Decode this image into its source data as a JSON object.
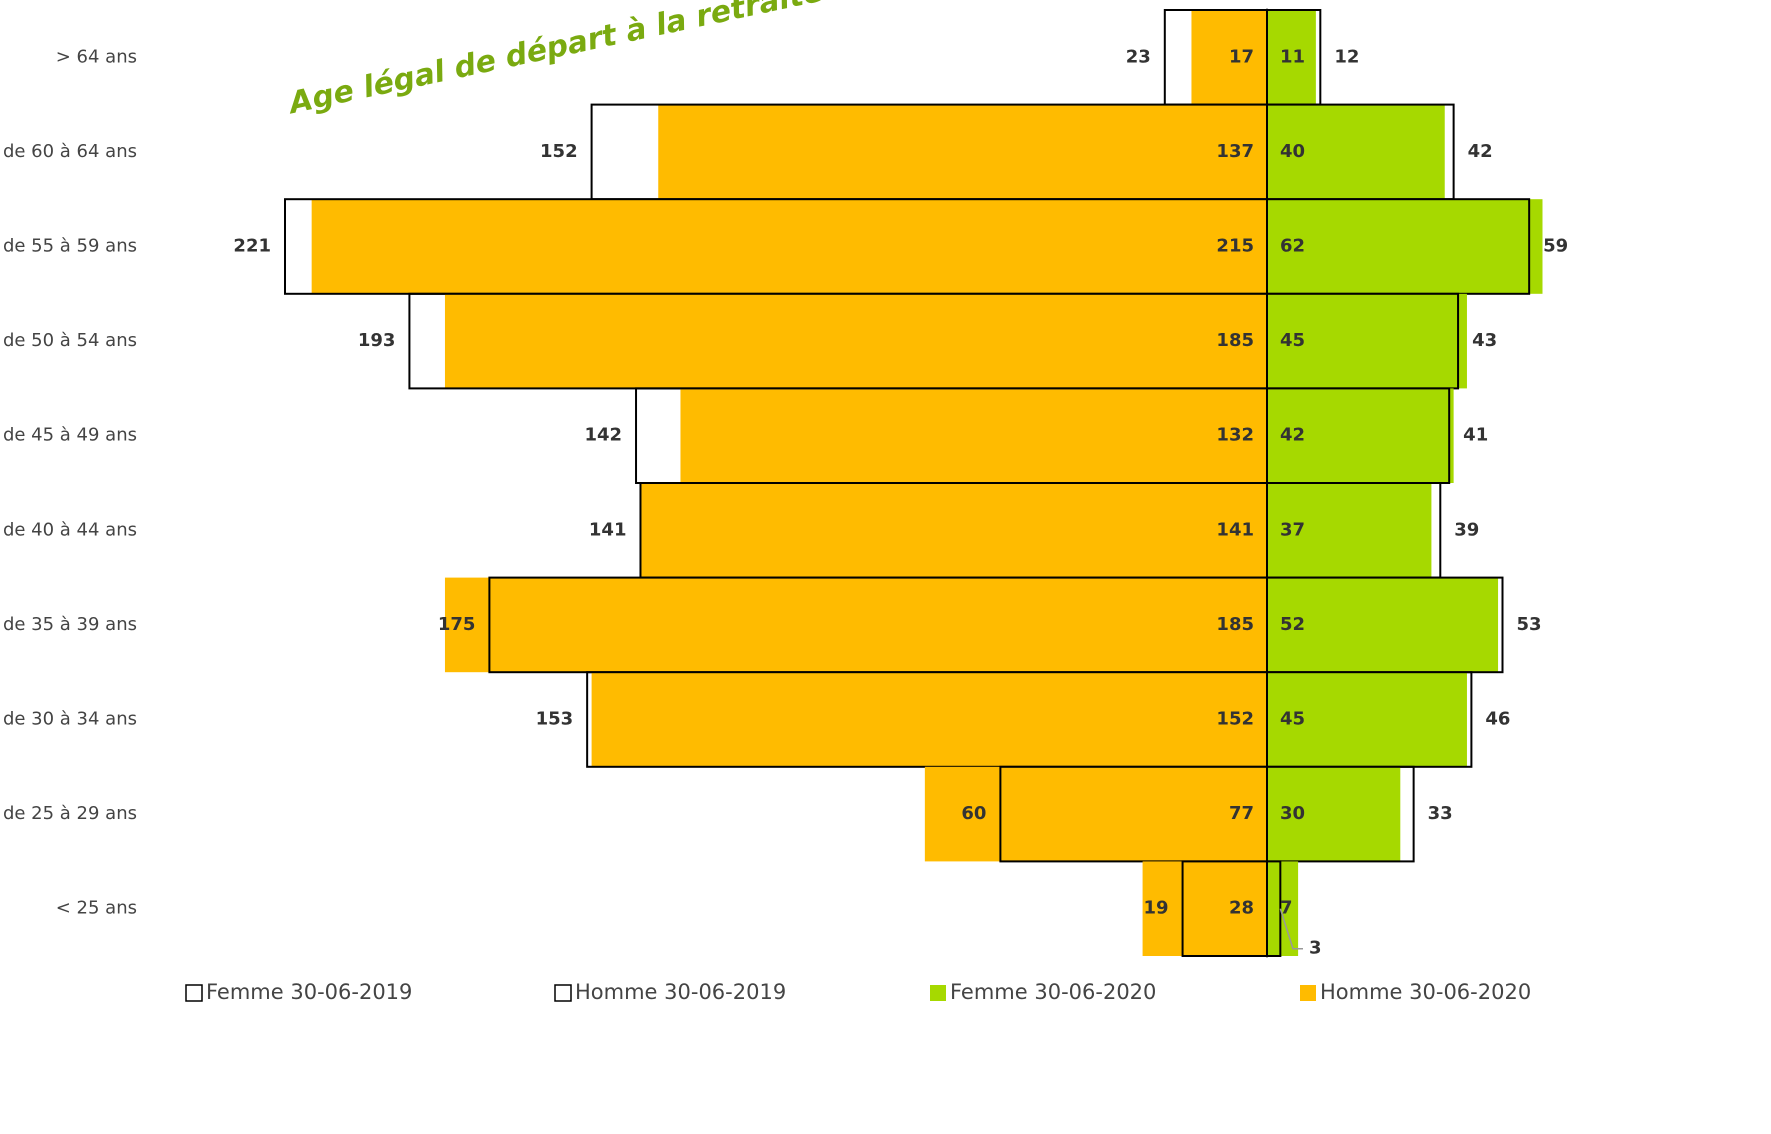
{
  "chart_data": {
    "type": "pyramid",
    "annotation": "Age légal de départ à la retraite",
    "categories": [
      "> 64 ans",
      "de 60 à 64 ans",
      "de 55 à 59 ans",
      "de 50 à 54 ans",
      "de 45 à 49 ans",
      "de 40 à 44 ans",
      "de 35 à 39 ans",
      "de 30 à 34 ans",
      "de 25 à 29 ans",
      "< 25 ans"
    ],
    "series": [
      {
        "name": "Femme 30-06-2019",
        "color": "#ffffff",
        "values": [
          12,
          42,
          59,
          43,
          41,
          39,
          53,
          46,
          33,
          3
        ]
      },
      {
        "name": "Homme 30-06-2019",
        "color": "#ffffff",
        "values": [
          23,
          152,
          221,
          193,
          142,
          141,
          175,
          153,
          60,
          19
        ]
      },
      {
        "name": "Femme 30-06-2020",
        "color": "#a6d900",
        "values": [
          11,
          40,
          62,
          45,
          42,
          37,
          52,
          45,
          30,
          7
        ]
      },
      {
        "name": "Homme 30-06-2020",
        "color": "#ffbb00",
        "values": [
          17,
          137,
          215,
          185,
          132,
          141,
          185,
          152,
          77,
          28
        ]
      }
    ]
  }
}
